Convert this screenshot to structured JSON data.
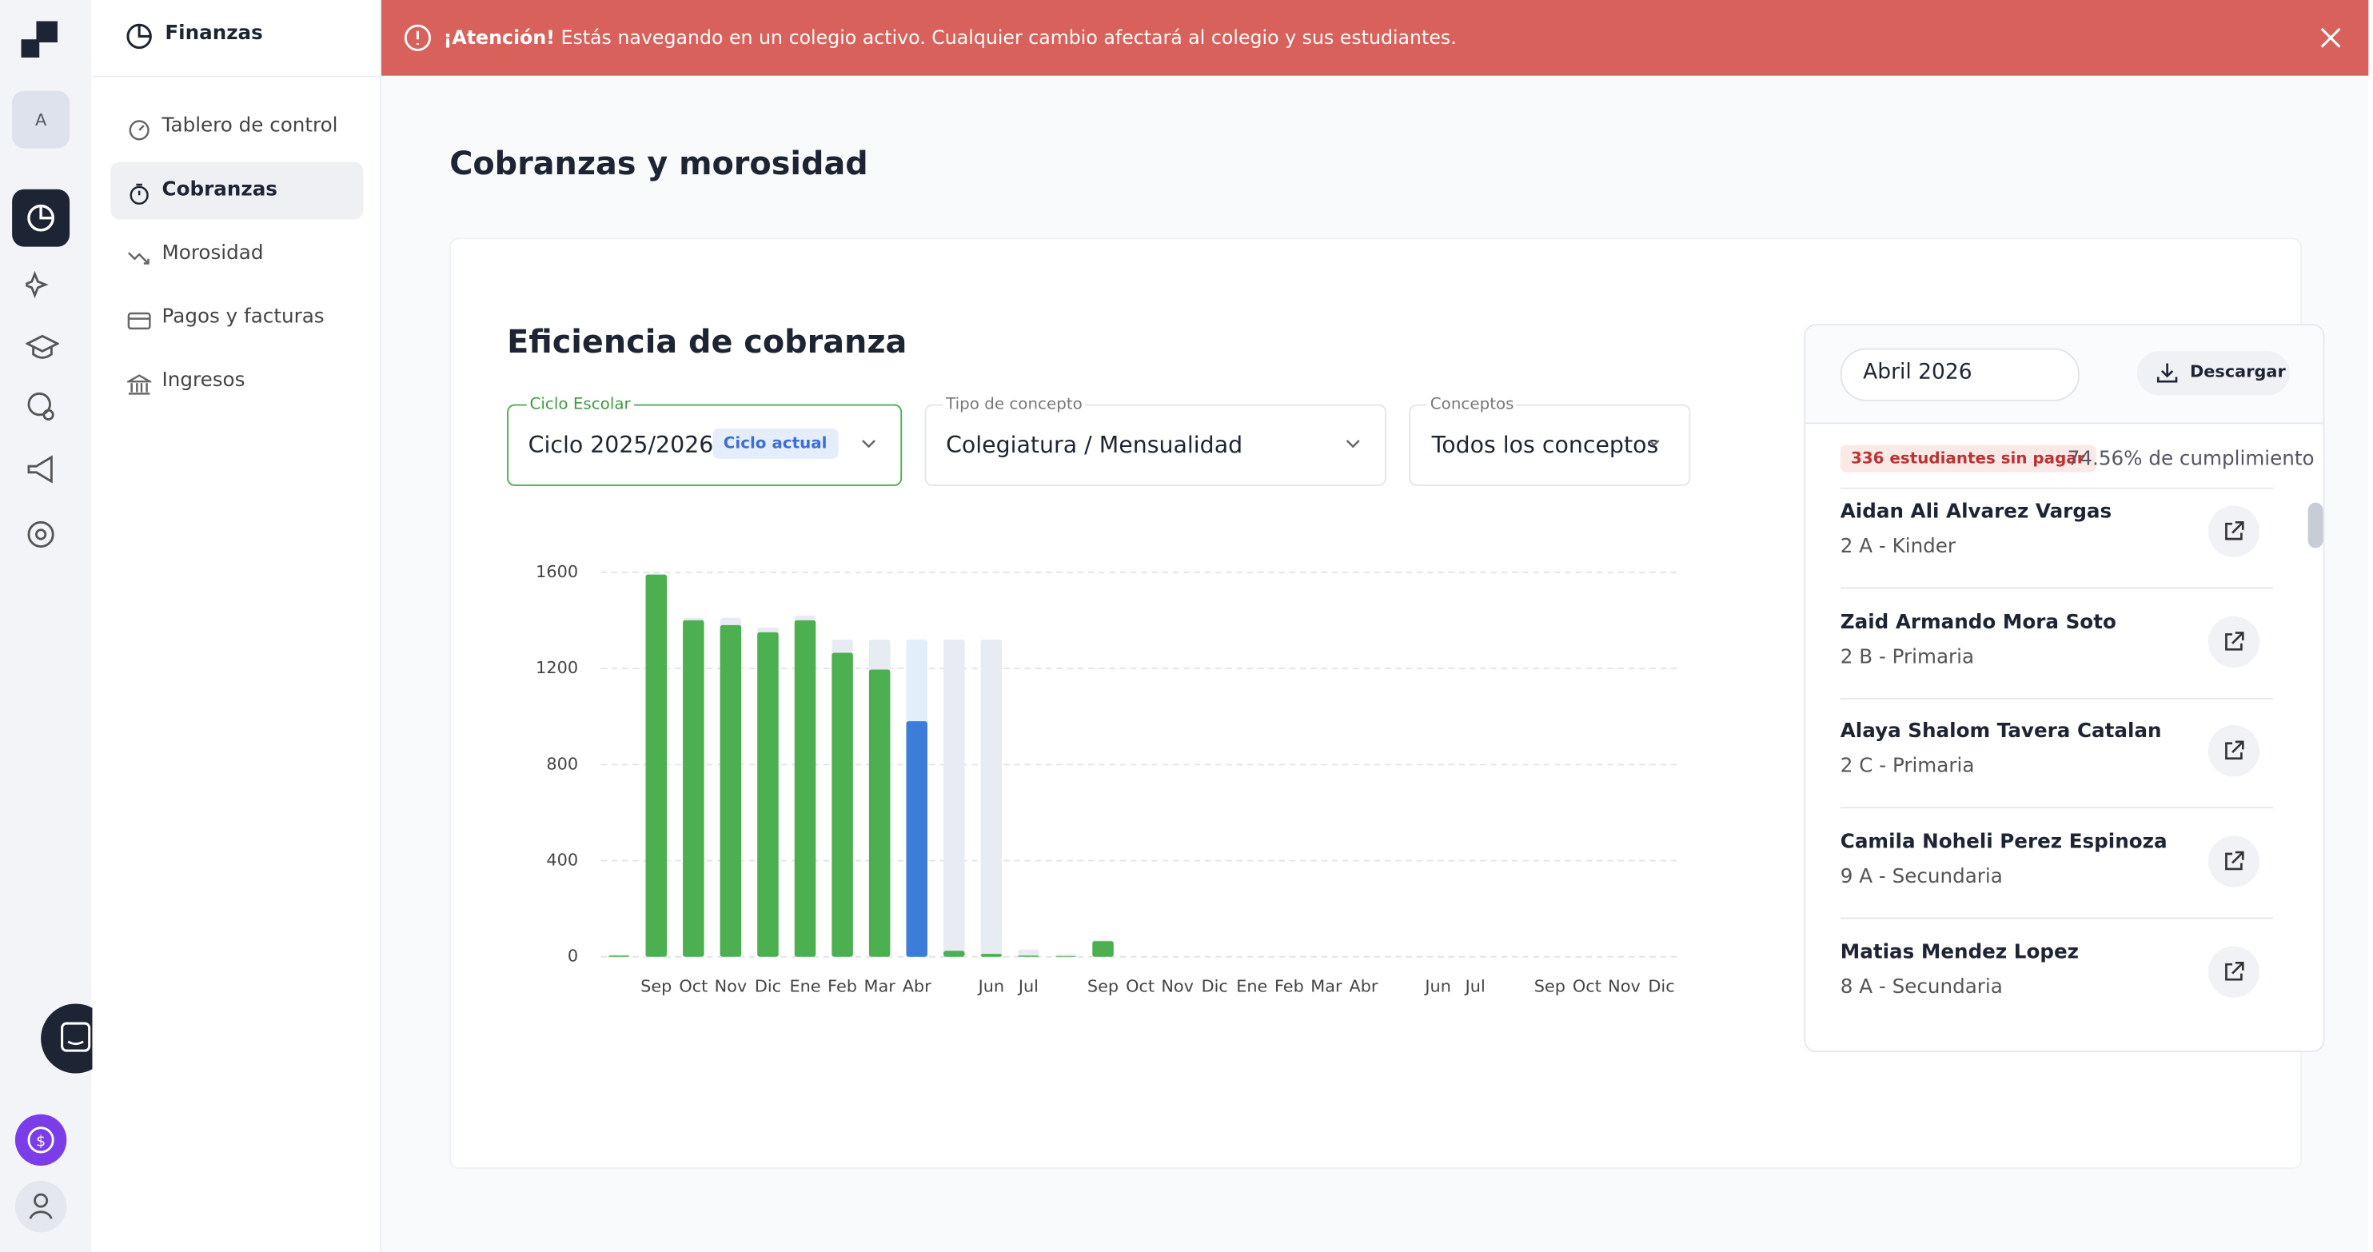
{
  "sidebar": {
    "avatar": "A"
  },
  "nav": {
    "title": "Finanzas",
    "items": [
      "Tablero de control",
      "Cobranzas",
      "Morosidad",
      "Pagos y facturas",
      "Ingresos"
    ]
  },
  "banner": {
    "strong": "¡Atención!",
    "text": "Estás navegando en un colegio activo. Cualquier cambio afectará al colegio y sus estudiantes."
  },
  "page_title": "Cobranzas y morosidad",
  "card": {
    "title": "Eficiencia de cobranza",
    "filters": [
      {
        "label": "Ciclo Escolar",
        "value": "Ciclo 2025/2026",
        "badge": "Ciclo actual"
      },
      {
        "label": "Tipo de concepto",
        "value": "Colegiatura / Mensualidad"
      },
      {
        "label": "Conceptos",
        "value": "Todos los conceptos"
      }
    ]
  },
  "chart_data": {
    "type": "bar",
    "categories": [
      null,
      "Sep",
      "Oct",
      "Nov",
      "Dic",
      "Ene",
      "Feb",
      "Mar",
      "Abr",
      null,
      "Jun",
      "Jul",
      null,
      "Sep",
      "Oct",
      "Nov",
      "Dic",
      "Ene",
      "Feb",
      "Mar",
      "Abr",
      null,
      "Jun",
      "Jul",
      null,
      "Sep",
      "Oct",
      "Nov",
      "Dic"
    ],
    "series": [
      {
        "values": [
          5,
          1590,
          1400,
          1380,
          1350,
          1400,
          1265,
          1195,
          980,
          25,
          12,
          5,
          3,
          65,
          0,
          0,
          0,
          0,
          0,
          0,
          0,
          0,
          0,
          0,
          0,
          0,
          0,
          0,
          0
        ],
        "colors": [
          "#4caf50",
          "#4caf50",
          "#4caf50",
          "#4caf50",
          "#4caf50",
          "#4caf50",
          "#4caf50",
          "#4caf50",
          "#3b7dd8",
          "#4caf50",
          "#4caf50",
          "#4caf50",
          "#4caf50",
          "#4caf50",
          "#4caf50",
          "#4caf50",
          "#4caf50",
          "#4caf50",
          "#4caf50",
          "#4caf50",
          "#4caf50",
          "#4caf50",
          "#4caf50",
          "#4caf50",
          "#4caf50",
          "#4caf50",
          "#4caf50",
          "#4caf50",
          "#4caf50"
        ]
      },
      {
        "values": [
          8,
          1595,
          1410,
          1410,
          1370,
          1420,
          1320,
          1320,
          1320,
          1320,
          1320,
          30,
          10,
          70,
          0,
          0,
          0,
          0,
          0,
          0,
          0,
          0,
          0,
          0,
          0,
          0,
          0,
          0,
          0
        ],
        "colors": [
          "#e8ebf2",
          "#e8ebf2",
          "#e8ebf2",
          "#e8ebf2",
          "#e8ebf2",
          "#e8ebf2",
          "#e8ebf2",
          "#e8ebf2",
          "#e3eefb",
          "#e8ebf2",
          "#e8ebf2",
          "#e8ebf2",
          "#e8ebf2",
          "#e8ebf2",
          "#e8ebf2",
          "#e8ebf2",
          "#e8ebf2",
          "#e8ebf2",
          "#e8ebf2",
          "#e8ebf2",
          "#e8ebf2",
          "#e8ebf2",
          "#e8ebf2",
          "#e8ebf2",
          "#e8ebf2",
          "#e8ebf2",
          "#e8ebf2",
          "#e8ebf2",
          "#e8ebf2"
        ]
      }
    ],
    "ylim": [
      0,
      1600
    ],
    "yticks": [
      0,
      400,
      800,
      1200,
      1600
    ],
    "grid": true
  },
  "panel": {
    "month": "Abril 2026",
    "download": "Descargar",
    "unpaid": "336 estudiantes sin pagar",
    "compliance": "74.56% de cumplimiento",
    "students": [
      {
        "name": "Aidan Ali Alvarez Vargas",
        "group": "2 A - Kinder"
      },
      {
        "name": "Zaid Armando Mora Soto",
        "group": "2 B - Primaria"
      },
      {
        "name": "Alaya Shalom Tavera Catalan",
        "group": "2 C - Primaria"
      },
      {
        "name": "Camila Noheli Perez Espinoza",
        "group": "9 A - Secundaria"
      },
      {
        "name": "Matias Mendez Lopez",
        "group": "8 A - Secundaria"
      }
    ]
  }
}
